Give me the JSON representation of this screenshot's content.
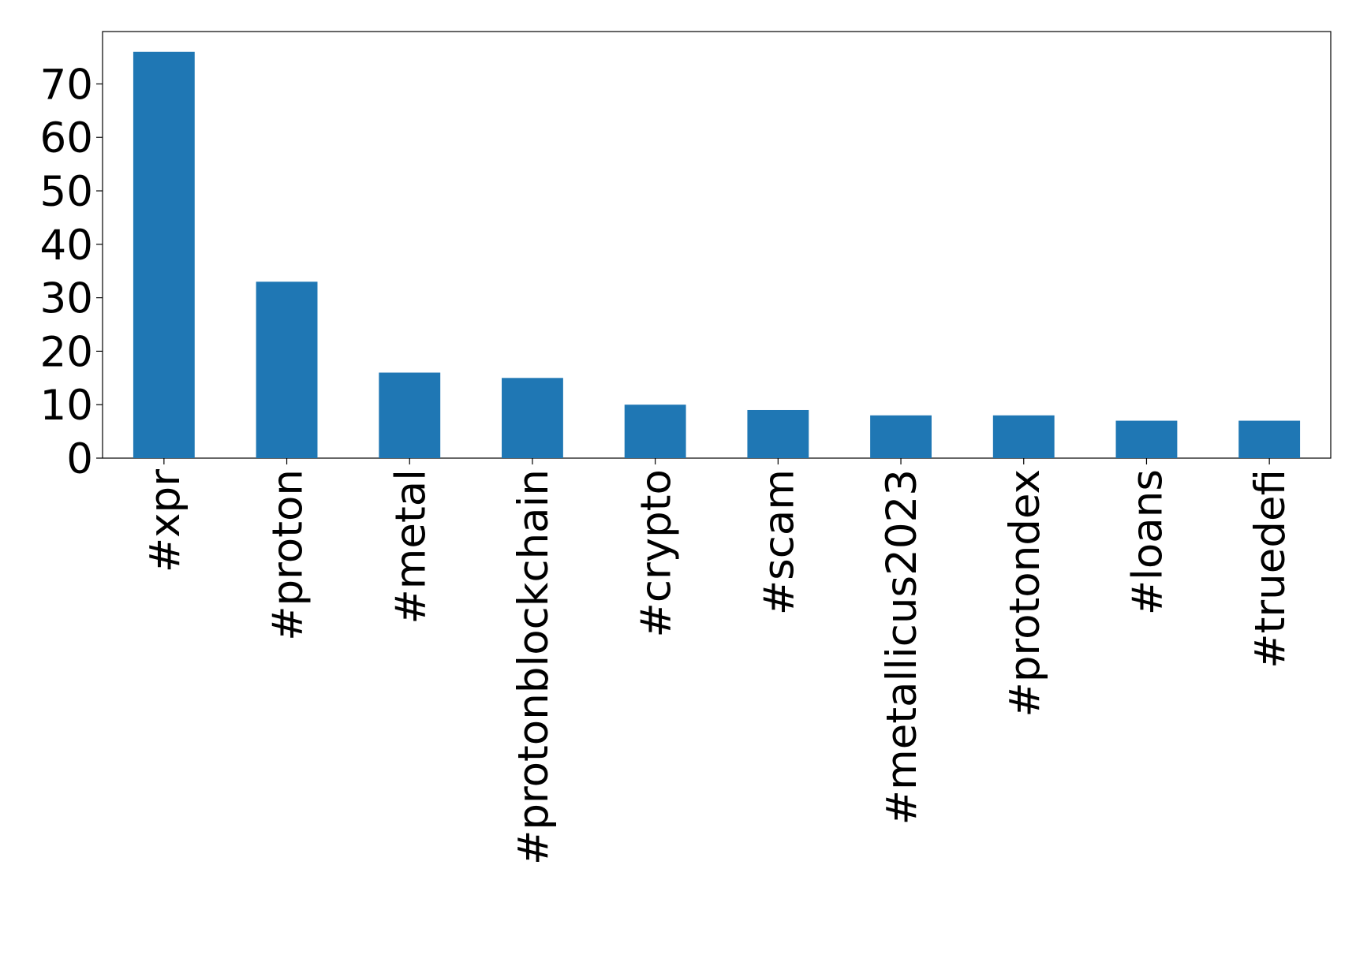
{
  "chart_data": {
    "type": "bar",
    "categories": [
      "#xpr",
      "#proton",
      "#metal",
      "#protonblockchain",
      "#crypto",
      "#scam",
      "#metallicus2023",
      "#protondex",
      "#loans",
      "#truedefi"
    ],
    "values": [
      76,
      33,
      16,
      15,
      10,
      9,
      8,
      8,
      7,
      7
    ],
    "color": "#1f77b4",
    "ylim": [
      0,
      79.8
    ],
    "yticks": [
      0,
      10,
      20,
      30,
      40,
      50,
      60,
      70
    ],
    "grid": false
  }
}
